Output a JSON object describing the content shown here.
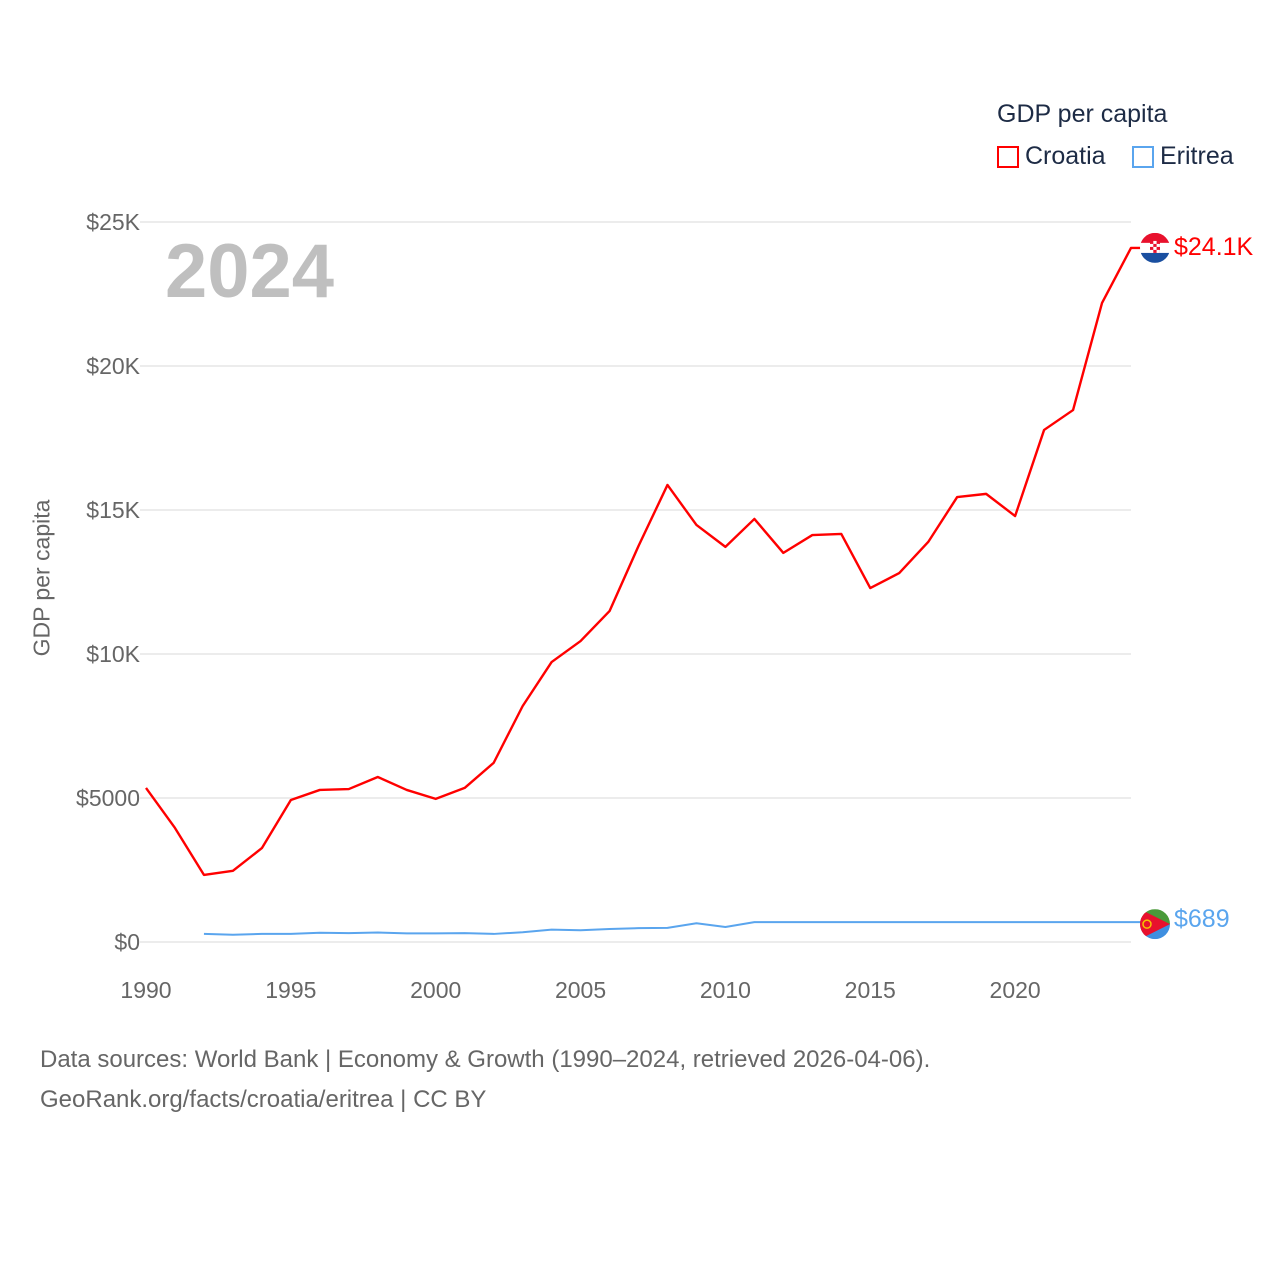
{
  "legend": {
    "title": "GDP per capita",
    "items": [
      {
        "label": "Croatia",
        "color": "#ff0000"
      },
      {
        "label": "Eritrea",
        "color": "#5aa5ee"
      }
    ]
  },
  "year_label": "2024",
  "footer": {
    "line1": "Data sources: World Bank | Economy & Growth (1990–2024, retrieved 2026-04-06).",
    "line2": "GeoRank.org/facts/croatia/eritrea | CC BY"
  },
  "chart_data": {
    "type": "line",
    "title": "GDP per capita",
    "xlabel": "",
    "ylabel": "GDP per capita",
    "xlim": [
      1990,
      2024
    ],
    "ylim": [
      0,
      25000
    ],
    "x_ticks": [
      1990,
      1995,
      2000,
      2005,
      2010,
      2015,
      2020
    ],
    "y_ticks": [
      {
        "v": 0,
        "label": "$0"
      },
      {
        "v": 5000,
        "label": "$5000"
      },
      {
        "v": 10000,
        "label": "$10K"
      },
      {
        "v": 15000,
        "label": "$15K"
      },
      {
        "v": 20000,
        "label": "$20K"
      },
      {
        "v": 25000,
        "label": "$25K"
      }
    ],
    "grid": true,
    "legend_position": "top-right",
    "series": [
      {
        "name": "Croatia",
        "color": "#ff0000",
        "end_label": "$24.1K",
        "x": [
          1990,
          1991,
          1992,
          1993,
          1994,
          1995,
          1996,
          1997,
          1998,
          1999,
          2000,
          2001,
          2002,
          2003,
          2004,
          2005,
          2006,
          2007,
          2008,
          2009,
          2010,
          2011,
          2012,
          2013,
          2014,
          2015,
          2016,
          2017,
          2018,
          2019,
          2020,
          2021,
          2022,
          2023,
          2024
        ],
        "values": [
          5350,
          3960,
          2330,
          2470,
          3260,
          4930,
          5280,
          5310,
          5730,
          5280,
          4970,
          5350,
          6220,
          8190,
          9720,
          10450,
          11490,
          13750,
          15870,
          14480,
          13720,
          14690,
          13510,
          14130,
          14170,
          12290,
          12810,
          13890,
          15450,
          15560,
          14790,
          17780,
          18470,
          22190,
          24100
        ]
      },
      {
        "name": "Eritrea",
        "color": "#5aa5ee",
        "end_label": "$689",
        "x": [
          1992,
          1993,
          1994,
          1995,
          1996,
          1997,
          1998,
          1999,
          2000,
          2001,
          2002,
          2003,
          2004,
          2005,
          2006,
          2007,
          2008,
          2009,
          2010,
          2011,
          2012,
          2013,
          2014,
          2015,
          2016,
          2017,
          2018,
          2019,
          2020,
          2021,
          2022,
          2023,
          2024
        ],
        "values": [
          280,
          250,
          280,
          280,
          320,
          310,
          330,
          300,
          300,
          310,
          280,
          340,
          430,
          410,
          450,
          480,
          490,
          650,
          520,
          689,
          689,
          689,
          689,
          689,
          689,
          689,
          689,
          689,
          689,
          689,
          689,
          689,
          689
        ]
      }
    ]
  }
}
